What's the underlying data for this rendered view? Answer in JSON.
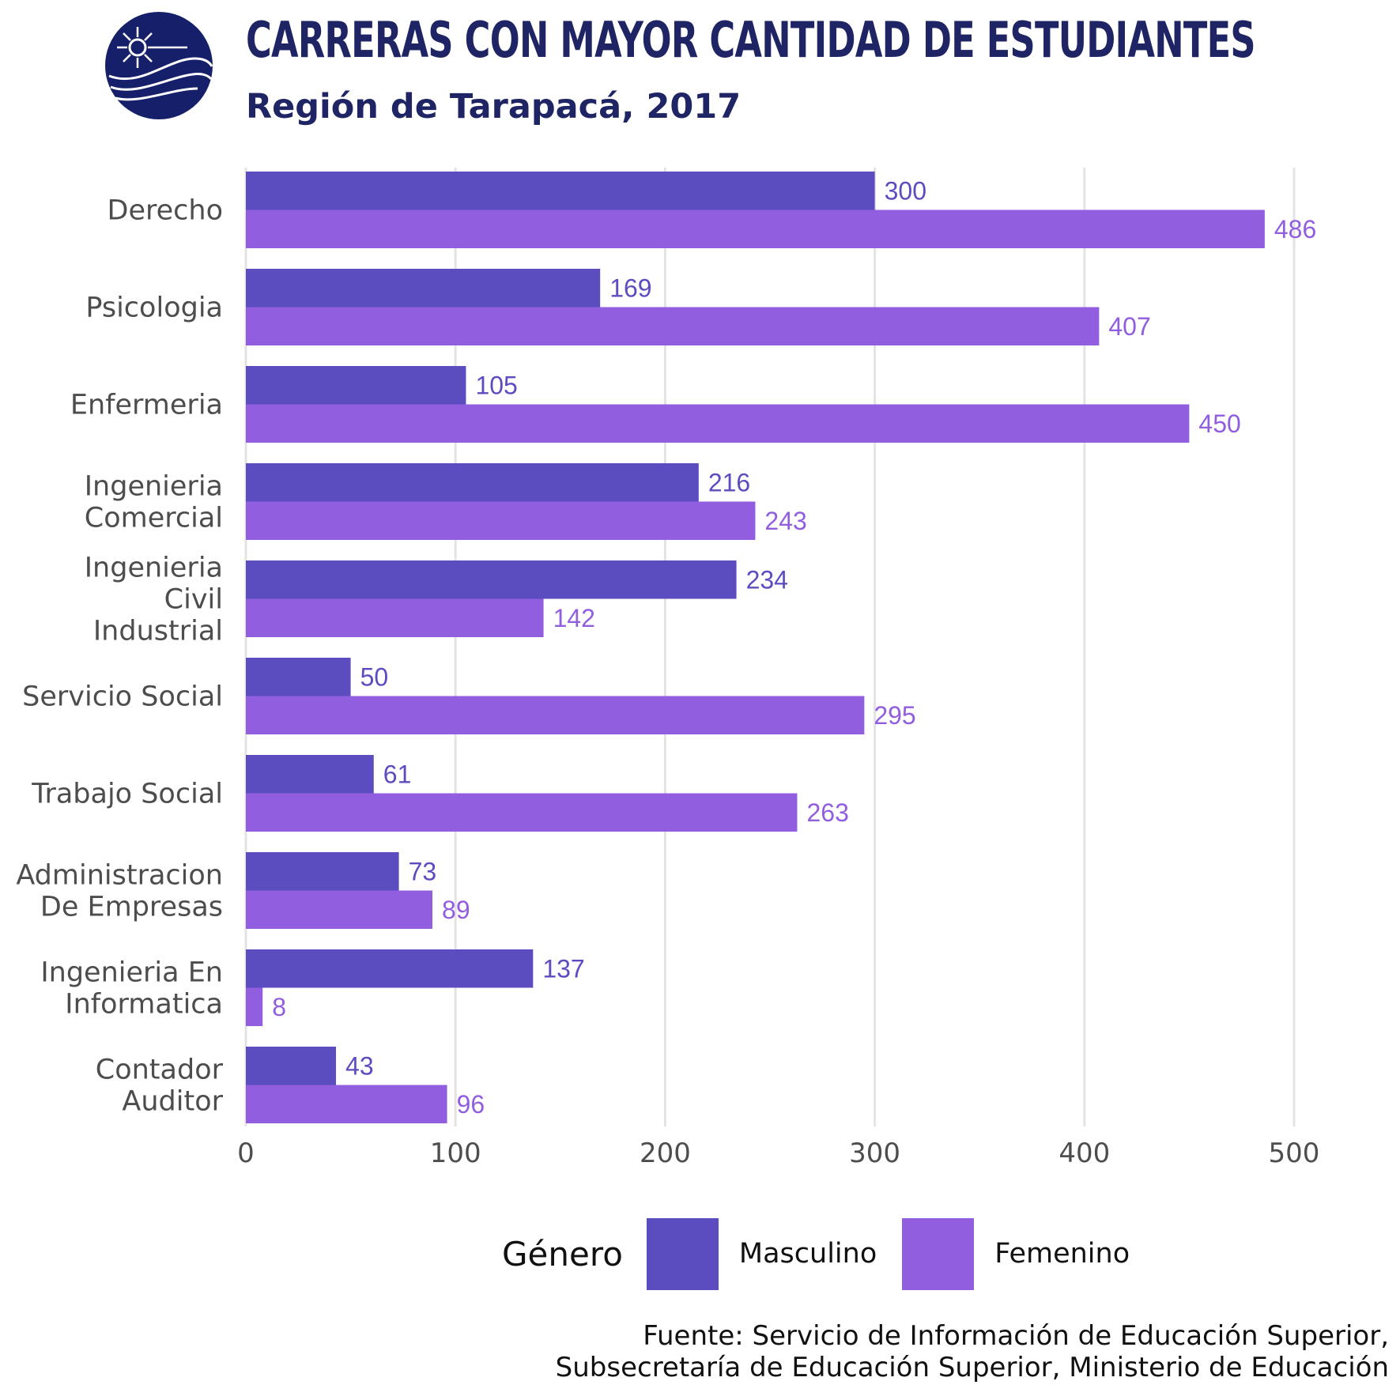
{
  "header": {
    "title": "CARRERAS CON MAYOR CANTIDAD DE ESTUDIANTES",
    "subtitle": "Región de Tarapacá, 2017"
  },
  "legend": {
    "title": "Género",
    "items": [
      {
        "label": "Masculino",
        "color": "#5b4dbf"
      },
      {
        "label": "Femenino",
        "color": "#915ee0"
      }
    ]
  },
  "source": {
    "line1": "Fuente: Servicio de Información de Educación Superior,",
    "line2": "Subsecretaría de Educación Superior, Ministerio de Educación"
  },
  "colors": {
    "title": "#1f2464",
    "masculino": "#5b4dbf",
    "femenino": "#915ee0",
    "grid": "#e3e3e3",
    "axis_text": "#4d4d4d"
  },
  "chart_data": {
    "type": "bar",
    "orientation": "horizontal",
    "categories": [
      [
        "Derecho"
      ],
      [
        "Psicologia"
      ],
      [
        "Enfermeria"
      ],
      [
        "Ingenieria",
        "Comercial"
      ],
      [
        "Ingenieria",
        "Civil",
        "Industrial"
      ],
      [
        "Servicio Social"
      ],
      [
        "Trabajo Social"
      ],
      [
        "Administracion",
        "De Empresas"
      ],
      [
        "Ingenieria En",
        "Informatica"
      ],
      [
        "Contador",
        "Auditor"
      ]
    ],
    "series": [
      {
        "name": "Masculino",
        "values": [
          300,
          169,
          105,
          216,
          234,
          50,
          61,
          73,
          137,
          43
        ]
      },
      {
        "name": "Femenino",
        "values": [
          486,
          407,
          450,
          243,
          142,
          295,
          263,
          89,
          8,
          96
        ]
      }
    ],
    "xticks": [
      0,
      100,
      200,
      300,
      400,
      500
    ],
    "xlim": [
      0,
      500
    ],
    "grid": true,
    "data_labels": true,
    "legend_position": "bottom"
  }
}
